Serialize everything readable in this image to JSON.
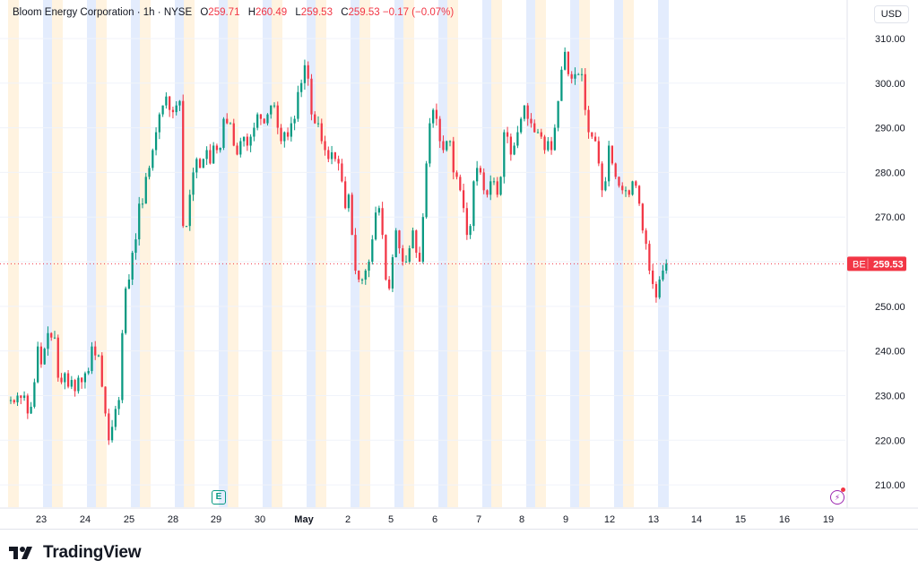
{
  "legend": {
    "symbol_name": "Bloom Energy Corporation",
    "separator": "·",
    "interval": "1h",
    "exchange": "NYSE",
    "open_label": "O",
    "open_value": "259.71",
    "high_label": "H",
    "high_value": "260.49",
    "low_label": "L",
    "low_value": "259.53",
    "close_label": "C",
    "close_value": "259.53",
    "change": "−0.17 (−0.07%)"
  },
  "currency": "USD",
  "price_tag": {
    "ticker": "BE",
    "value": "259.53"
  },
  "earnings_marker": "E",
  "footer": {
    "brand": "TradingView"
  },
  "colors": {
    "up": "#089981",
    "down": "#f23645",
    "session_pre": "#fff3e0",
    "session_post": "#e3ecfd",
    "grid": "#f0f3fa",
    "text": "#131722"
  },
  "chart_data": {
    "type": "candlestick",
    "title": "Bloom Energy Corporation · 1h · NYSE",
    "ylim": [
      205,
      313
    ],
    "y_ticks": [
      210,
      220,
      230,
      240,
      250,
      260,
      270,
      280,
      290,
      300,
      310
    ],
    "x_ticks": [
      "23",
      "24",
      "25",
      "28",
      "29",
      "30",
      "May",
      "2",
      "5",
      "6",
      "7",
      "8",
      "9",
      "12",
      "13",
      "14",
      "15",
      "16",
      "19"
    ],
    "last_price": 259.53,
    "daily_path": [
      [
        229,
        228.5,
        230,
        229.5,
        230,
        226,
        227.5,
        233,
        241,
        237,
        240.5,
        244,
        243
      ],
      [
        243,
        234,
        233,
        235,
        232,
        233.5,
        231,
        234,
        233,
        235,
        235.5,
        241,
        239
      ],
      [
        239,
        232,
        226,
        220,
        223,
        227,
        229,
        244,
        254,
        256,
        262,
        265,
        273
      ],
      [
        273,
        279,
        281,
        285,
        289,
        293,
        295,
        297,
        294,
        293.5,
        295,
        296,
        268
      ],
      [
        268,
        275,
        280,
        283,
        281,
        283,
        285,
        282,
        286,
        285,
        285.5,
        292,
        291
      ],
      [
        291,
        286,
        284,
        287,
        288,
        286,
        288,
        290,
        293,
        292,
        291,
        293,
        295
      ],
      [
        295,
        290,
        287,
        289,
        288,
        291,
        292,
        298,
        300,
        304,
        301,
        293,
        291
      ],
      [
        291,
        287,
        285,
        283,
        284.5,
        283,
        282,
        278,
        272,
        275,
        266,
        258,
        256
      ],
      [
        256,
        258,
        260,
        265,
        271,
        272,
        266,
        256,
        254,
        261,
        267,
        263,
        260
      ],
      [
        260,
        263,
        267,
        262,
        260,
        270,
        282,
        291,
        294,
        292,
        287,
        285,
        287
      ],
      [
        287,
        280,
        279,
        276,
        272,
        266,
        268,
        278,
        281,
        280,
        276,
        275,
        278
      ],
      [
        278,
        275,
        279,
        289,
        288,
        284,
        286,
        289,
        292,
        295,
        292,
        291,
        289
      ],
      [
        289,
        288,
        285,
        287,
        285,
        290,
        296,
        303,
        307,
        302,
        301,
        302,
        302
      ],
      [
        302,
        294,
        289,
        288,
        287,
        282,
        276,
        278,
        286,
        282,
        279,
        277,
        276
      ],
      [
        276,
        275,
        278,
        277,
        273,
        267,
        264,
        258,
        255,
        252,
        256,
        258,
        259.53
      ]
    ]
  }
}
